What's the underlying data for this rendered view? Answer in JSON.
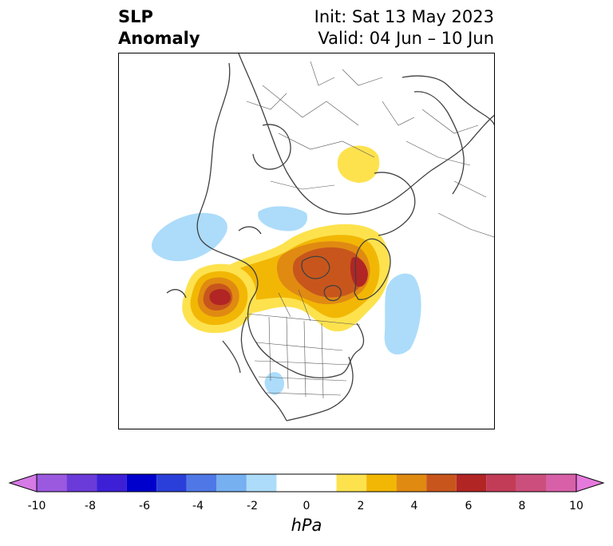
{
  "title": {
    "line1": "SLP",
    "line2": "Anomaly",
    "init": "Init: Sat 13 May 2023",
    "valid": "Valid: 04 Jun – 10 Jun"
  },
  "colorbar": {
    "unit": "hPa",
    "extend": "both",
    "min_color": "#d67ae6",
    "max_color": "#e67adc",
    "bins": [
      {
        "from": -9,
        "to": -8,
        "color": "#9b59e0"
      },
      {
        "from": -8,
        "to": -7,
        "color": "#6a3bd8"
      },
      {
        "from": -7,
        "to": -6,
        "color": "#3d1fd6"
      },
      {
        "from": -6,
        "to": -5,
        "color": "#0000cc"
      },
      {
        "from": -5,
        "to": -4,
        "color": "#2a3fd9"
      },
      {
        "from": -4,
        "to": -3,
        "color": "#4f78e6"
      },
      {
        "from": -3,
        "to": -2,
        "color": "#76b0f0"
      },
      {
        "from": -2,
        "to": -1,
        "color": "#acdcfa"
      },
      {
        "from": -1,
        "to": 1,
        "color": "#ffffff"
      },
      {
        "from": 1,
        "to": 2,
        "color": "#fde24e"
      },
      {
        "from": 2,
        "to": 3,
        "color": "#f2b705"
      },
      {
        "from": 3,
        "to": 4,
        "color": "#e08a12"
      },
      {
        "from": 4,
        "to": 5,
        "color": "#c8561c"
      },
      {
        "from": 5,
        "to": 6,
        "color": "#b22525"
      },
      {
        "from": 6,
        "to": 7,
        "color": "#c23c58"
      },
      {
        "from": 7,
        "to": 8,
        "color": "#cc4e7c"
      },
      {
        "from": 8,
        "to": 9,
        "color": "#d860a8"
      }
    ],
    "ticks": [
      "-10",
      "-8",
      "-6",
      "-4",
      "-2",
      "0",
      "2",
      "4",
      "6",
      "8",
      "10"
    ],
    "tick_values": [
      -10,
      -8,
      -6,
      -4,
      -2,
      0,
      2,
      4,
      6,
      8,
      10
    ]
  },
  "map": {
    "projection": "polar-stereographic-north",
    "field": "sea-level-pressure-anomaly",
    "features": [
      {
        "name": "ne-pacific-high",
        "level": 6,
        "colors": [
          "#fde24e",
          "#f2b705",
          "#e08a12",
          "#c8561c",
          "#b22525"
        ]
      },
      {
        "name": "canada-greenland-high",
        "level": 6,
        "colors": [
          "#fde24e",
          "#f2b705",
          "#e08a12",
          "#c8561c",
          "#b22525"
        ]
      },
      {
        "name": "siberia-high",
        "level": 2,
        "colors": [
          "#fde24e"
        ]
      },
      {
        "name": "north-pacific-low",
        "level": -1.5,
        "colors": [
          "#acdcfa"
        ]
      },
      {
        "name": "arctic-low",
        "level": -1.5,
        "colors": [
          "#acdcfa"
        ]
      },
      {
        "name": "north-atlantic-low",
        "level": -1.5,
        "colors": [
          "#acdcfa"
        ]
      },
      {
        "name": "southwest-us-low",
        "level": -1.5,
        "colors": [
          "#acdcfa"
        ]
      }
    ]
  }
}
